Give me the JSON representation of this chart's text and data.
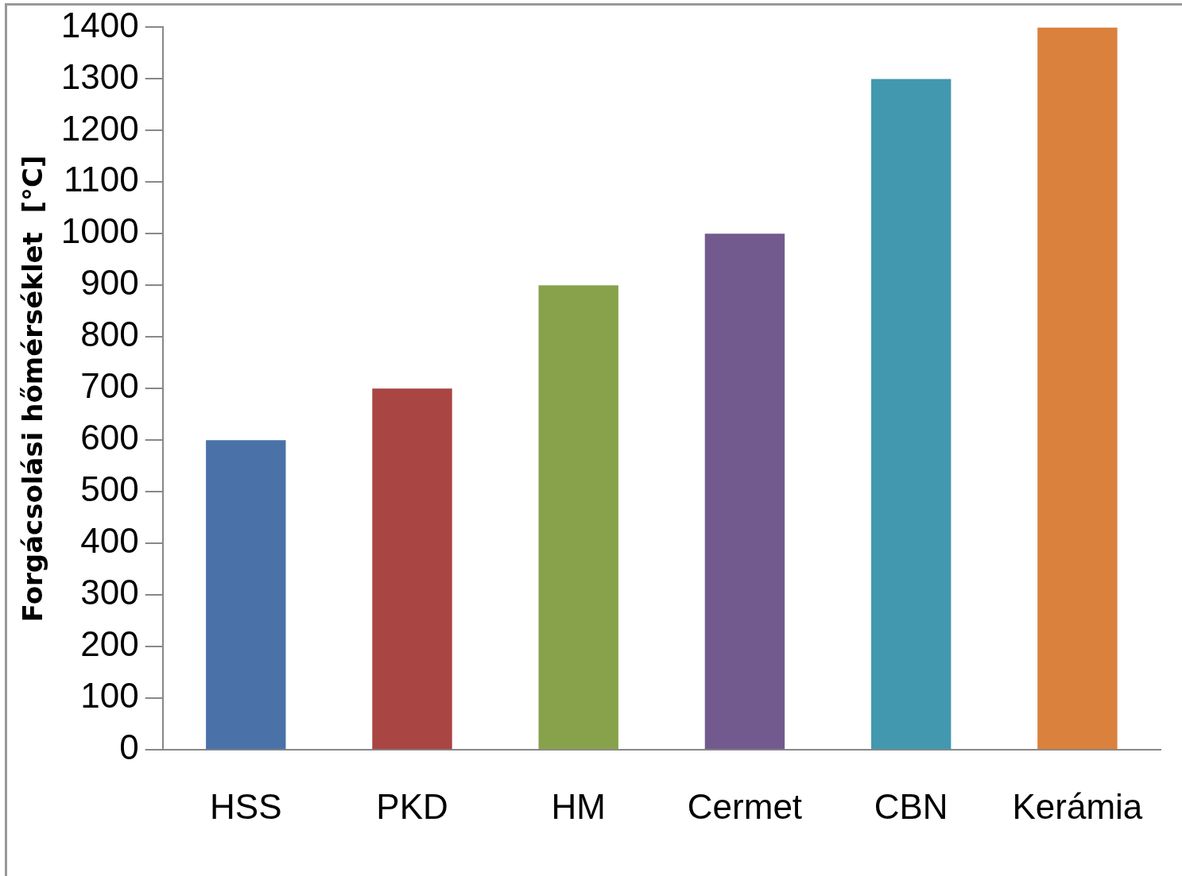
{
  "chart_data": {
    "type": "bar",
    "ylabel": "Forgácsolási hőmérséklet  [°C]",
    "categories": [
      "HSS",
      "PKD",
      "HM",
      "Cermet",
      "CBN",
      "Kerámia"
    ],
    "values": [
      600,
      700,
      900,
      1000,
      1300,
      1400
    ],
    "colors": [
      "#4a72a8",
      "#a94543",
      "#88a24c",
      "#725a8e",
      "#4298ae",
      "#d9813d"
    ],
    "ylim": [
      0,
      1400
    ],
    "yticks": [
      0,
      100,
      200,
      300,
      400,
      500,
      600,
      700,
      800,
      900,
      1000,
      1100,
      1200,
      1300,
      1400
    ],
    "grid": false,
    "legend": false
  }
}
